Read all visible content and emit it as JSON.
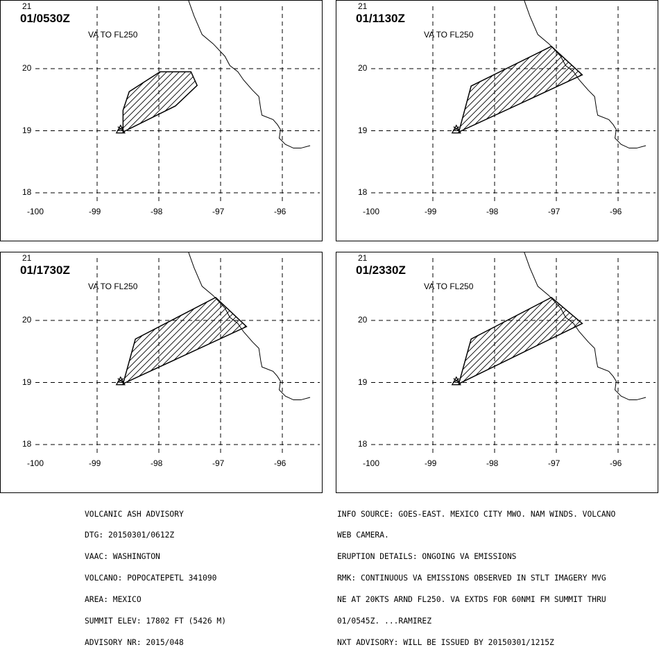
{
  "panels": [
    {
      "time": "01/0530Z",
      "level": "VA TO FL250",
      "polygon": [
        [
          -98.58,
          18.98
        ],
        [
          -98.58,
          19.33
        ],
        [
          -98.48,
          19.63
        ],
        [
          -97.98,
          19.95
        ],
        [
          -97.48,
          19.95
        ],
        [
          -97.38,
          19.73
        ],
        [
          -97.73,
          19.4
        ],
        [
          -98.58,
          18.98
        ]
      ]
    },
    {
      "time": "01/1130Z",
      "level": "VA TO FL250",
      "polygon": [
        [
          -98.58,
          18.98
        ],
        [
          -98.38,
          19.72
        ],
        [
          -97.08,
          20.36
        ],
        [
          -96.58,
          19.9
        ],
        [
          -98.58,
          18.98
        ]
      ]
    },
    {
      "time": "01/1730Z",
      "level": "VA TO FL250",
      "polygon": [
        [
          -98.58,
          18.98
        ],
        [
          -98.38,
          19.7
        ],
        [
          -97.08,
          20.37
        ],
        [
          -96.58,
          19.9
        ],
        [
          -98.58,
          18.98
        ]
      ]
    },
    {
      "time": "01/2330Z",
      "level": "VA TO FL250",
      "polygon": [
        [
          -98.58,
          18.98
        ],
        [
          -98.38,
          19.7
        ],
        [
          -97.08,
          20.37
        ],
        [
          -96.58,
          19.95
        ],
        [
          -98.58,
          18.98
        ]
      ]
    }
  ],
  "axes": {
    "lon_ticks": [
      "-100",
      "-99",
      "-98",
      "-97",
      "-96"
    ],
    "lat_ticks": [
      "21",
      "20",
      "19",
      "18"
    ],
    "lon_range": [
      -100,
      -95.2
    ],
    "lat_range": [
      17.7,
      21.1
    ]
  },
  "volcano": {
    "lon": -98.62,
    "lat": 19.02
  },
  "coastline": [
    [
      -97.52,
      21.1
    ],
    [
      -97.43,
      20.85
    ],
    [
      -97.3,
      20.55
    ],
    [
      -97.12,
      20.4
    ],
    [
      -96.93,
      20.2
    ],
    [
      -96.85,
      20.05
    ],
    [
      -96.72,
      19.95
    ],
    [
      -96.63,
      19.82
    ],
    [
      -96.48,
      19.65
    ],
    [
      -96.38,
      19.55
    ],
    [
      -96.35,
      19.35
    ],
    [
      -96.33,
      19.25
    ],
    [
      -96.15,
      19.18
    ],
    [
      -96.08,
      19.1
    ],
    [
      -96.03,
      19.02
    ],
    [
      -96.05,
      18.88
    ],
    [
      -95.95,
      18.78
    ],
    [
      -95.82,
      18.72
    ],
    [
      -95.7,
      18.72
    ],
    [
      -95.55,
      18.76
    ]
  ],
  "colors": {
    "line": "#000000",
    "background": "#ffffff"
  },
  "advisory_left": [
    "VOLCANIC ASH ADVISORY",
    "DTG: 20150301/0612Z",
    "VAAC: WASHINGTON",
    "VOLCANO: POPOCATEPETL 341090",
    "AREA: MEXICO",
    "SUMMIT ELEV: 17802 FT (5426 M)",
    "ADVISORY NR: 2015/048"
  ],
  "advisory_right": [
    "INFO SOURCE: GOES-EAST. MEXICO CITY MWO. NAM WINDS. VOLCANO",
    "WEB CAMERA.",
    "ERUPTION DETAILS: ONGOING VA EMISSIONS",
    "RMK: CONTINUOUS VA EMISSIONS OBSERVED IN STLT IMAGERY MVG",
    "NE AT 20KTS ARND FL250. VA EXTDS FOR 60NMI FM SUMMIT THRU",
    "01/0545Z. ...RAMIREZ",
    "NXT ADVISORY: WILL BE ISSUED BY 20150301/1215Z"
  ]
}
